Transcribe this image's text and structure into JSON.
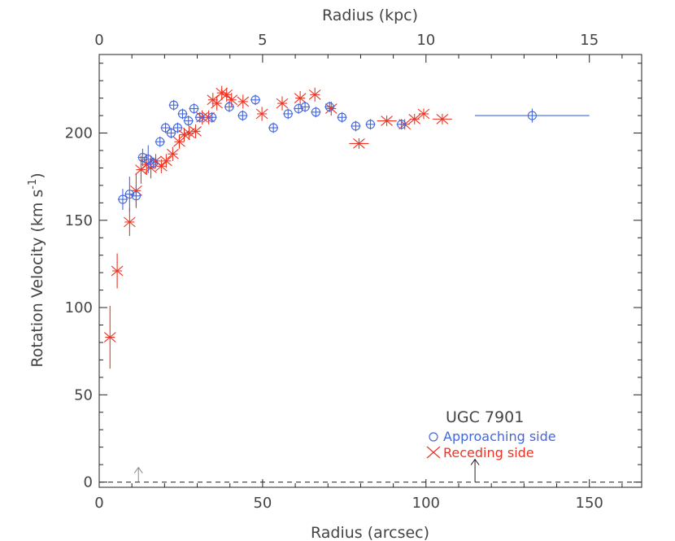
{
  "chart_data": {
    "type": "scatter",
    "title": "",
    "xlabel": "Radius (arcsec)",
    "x2label": "Radius (kpc)",
    "ylabel_main": "Rotation Velocity (km s",
    "ylabel_sup": "-1",
    "ylabel_close": ")",
    "xlim": [
      0,
      166
    ],
    "ylim": [
      -3,
      245
    ],
    "x2lim": [
      0,
      16.6
    ],
    "xticks": [
      "0",
      "50",
      "100",
      "150"
    ],
    "xtick_values": [
      0,
      50,
      100,
      150
    ],
    "yticks": [
      "0",
      "50",
      "100",
      "150",
      "200"
    ],
    "ytick_values": [
      0,
      50,
      100,
      150,
      200
    ],
    "x2ticks": [
      "0",
      "5",
      "10",
      "15"
    ],
    "x2tick_values": [
      0,
      5,
      10,
      15
    ],
    "legend": {
      "title": "UGC 7901",
      "placement": "bottom-right",
      "entries": [
        "Approaching side",
        "Receding side"
      ]
    },
    "markers": [
      12,
      115
    ],
    "colors": {
      "approaching": "#4466dd",
      "receding": "#ee3322",
      "axes": "#222222"
    },
    "series": [
      {
        "name": "Approaching side",
        "marker": "circle",
        "points": [
          {
            "x": 7.2,
            "y": 162,
            "ex": 1.5,
            "ey": 6
          },
          {
            "x": 9.3,
            "y": 165,
            "ex": 1.5,
            "ey": 10
          },
          {
            "x": 11.3,
            "y": 164,
            "ex": 1.5,
            "ey": 6
          },
          {
            "x": 13.3,
            "y": 186,
            "ex": 1.5,
            "ey": 5
          },
          {
            "x": 15.0,
            "y": 185,
            "ex": 1.5,
            "ey": 8
          },
          {
            "x": 16.6,
            "y": 183,
            "ex": 1.5,
            "ey": 3
          },
          {
            "x": 18.6,
            "y": 195,
            "ex": 1.5,
            "ey": 3
          },
          {
            "x": 20.3,
            "y": 203,
            "ex": 1.5,
            "ey": 3
          },
          {
            "x": 22.0,
            "y": 200,
            "ex": 1.5,
            "ey": 3
          },
          {
            "x": 22.8,
            "y": 216,
            "ex": 1.5,
            "ey": 3
          },
          {
            "x": 24.0,
            "y": 203,
            "ex": 1.5,
            "ey": 3
          },
          {
            "x": 25.5,
            "y": 211,
            "ex": 1.5,
            "ey": 3
          },
          {
            "x": 27.3,
            "y": 207,
            "ex": 1.5,
            "ey": 3
          },
          {
            "x": 29.0,
            "y": 214,
            "ex": 1.5,
            "ey": 3
          },
          {
            "x": 30.8,
            "y": 209,
            "ex": 1.5,
            "ey": 3
          },
          {
            "x": 34.5,
            "y": 209,
            "ex": 1.5,
            "ey": 3
          },
          {
            "x": 39.8,
            "y": 215,
            "ex": 1.5,
            "ey": 3
          },
          {
            "x": 43.9,
            "y": 210,
            "ex": 1.5,
            "ey": 3
          },
          {
            "x": 47.8,
            "y": 219,
            "ex": 1.5,
            "ey": 3
          },
          {
            "x": 53.3,
            "y": 203,
            "ex": 1.5,
            "ey": 3
          },
          {
            "x": 57.8,
            "y": 211,
            "ex": 1.5,
            "ey": 3
          },
          {
            "x": 61.0,
            "y": 214,
            "ex": 1.5,
            "ey": 3
          },
          {
            "x": 63.0,
            "y": 215,
            "ex": 1.5,
            "ey": 3
          },
          {
            "x": 66.3,
            "y": 212,
            "ex": 1.5,
            "ey": 3
          },
          {
            "x": 70.5,
            "y": 215,
            "ex": 1.5,
            "ey": 3
          },
          {
            "x": 74.3,
            "y": 209,
            "ex": 1.5,
            "ey": 3
          },
          {
            "x": 78.5,
            "y": 204,
            "ex": 1.5,
            "ey": 3
          },
          {
            "x": 83.0,
            "y": 205,
            "ex": 1.5,
            "ey": 3
          },
          {
            "x": 92.5,
            "y": 205,
            "ex": 1.5,
            "ey": 3
          },
          {
            "x": 132.5,
            "y": 210,
            "ex": 17.5,
            "ey": 4
          }
        ]
      },
      {
        "name": "Receding side",
        "marker": "asterisk",
        "points": [
          {
            "x": 3.3,
            "y": 83,
            "ex": 1.5,
            "ey": 18
          },
          {
            "x": 5.5,
            "y": 121,
            "ex": 1.5,
            "ey": 10
          },
          {
            "x": 9.3,
            "y": 149,
            "ex": 1.5,
            "ey": 8
          },
          {
            "x": 11.3,
            "y": 167,
            "ex": 1.5,
            "ey": 10
          },
          {
            "x": 12.8,
            "y": 179,
            "ex": 1.5,
            "ey": 8
          },
          {
            "x": 14.5,
            "y": 182,
            "ex": 1.5,
            "ey": 6
          },
          {
            "x": 15.8,
            "y": 180,
            "ex": 1.5,
            "ey": 6
          },
          {
            "x": 17.3,
            "y": 184,
            "ex": 1.5,
            "ey": 4
          },
          {
            "x": 19.0,
            "y": 181,
            "ex": 1.5,
            "ey": 4
          },
          {
            "x": 20.5,
            "y": 184,
            "ex": 1.5,
            "ey": 4
          },
          {
            "x": 22.5,
            "y": 188,
            "ex": 1.5,
            "ey": 4
          },
          {
            "x": 24.5,
            "y": 195,
            "ex": 1.5,
            "ey": 4
          },
          {
            "x": 26.0,
            "y": 199,
            "ex": 1.5,
            "ey": 4
          },
          {
            "x": 27.5,
            "y": 200,
            "ex": 1.5,
            "ey": 4
          },
          {
            "x": 29.5,
            "y": 201,
            "ex": 1.5,
            "ey": 4
          },
          {
            "x": 31.5,
            "y": 209,
            "ex": 1.5,
            "ey": 4
          },
          {
            "x": 33.5,
            "y": 209,
            "ex": 1.5,
            "ey": 4
          },
          {
            "x": 34.8,
            "y": 219,
            "ex": 1.5,
            "ey": 4
          },
          {
            "x": 36.0,
            "y": 217,
            "ex": 1.5,
            "ey": 4
          },
          {
            "x": 37.5,
            "y": 223,
            "ex": 1.5,
            "ey": 4
          },
          {
            "x": 39.0,
            "y": 222,
            "ex": 1.5,
            "ey": 4
          },
          {
            "x": 40.5,
            "y": 219,
            "ex": 1.5,
            "ey": 4
          },
          {
            "x": 44.0,
            "y": 218,
            "ex": 1.5,
            "ey": 4
          },
          {
            "x": 49.8,
            "y": 211,
            "ex": 1.5,
            "ey": 4
          },
          {
            "x": 56.0,
            "y": 217,
            "ex": 1.5,
            "ey": 4
          },
          {
            "x": 61.5,
            "y": 220,
            "ex": 1.5,
            "ey": 4
          },
          {
            "x": 66.0,
            "y": 222,
            "ex": 1.5,
            "ey": 4
          },
          {
            "x": 71.0,
            "y": 214,
            "ex": 1.5,
            "ey": 4
          },
          {
            "x": 79.5,
            "y": 194,
            "ex": 3.0,
            "ey": 3
          },
          {
            "x": 88.0,
            "y": 207,
            "ex": 3.0,
            "ey": 3
          },
          {
            "x": 93.5,
            "y": 205,
            "ex": 1.5,
            "ey": 3
          },
          {
            "x": 96.5,
            "y": 208,
            "ex": 1.5,
            "ey": 3
          },
          {
            "x": 99.3,
            "y": 211,
            "ex": 1.5,
            "ey": 3
          },
          {
            "x": 105.0,
            "y": 208,
            "ex": 3.0,
            "ey": 3
          }
        ]
      }
    ]
  }
}
